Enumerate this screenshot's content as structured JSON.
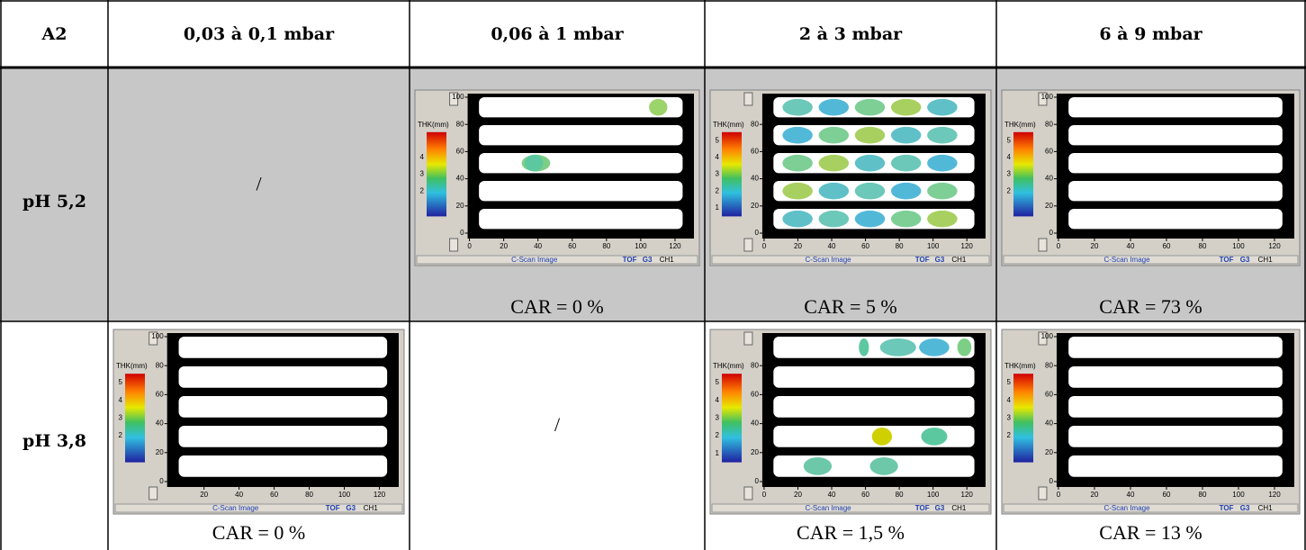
{
  "header": [
    "A2",
    "0,03 à 0,1 mbar",
    "0,06 à 1 mbar",
    "2 à 3 mbar",
    "6 à 9 mbar"
  ],
  "scan_labels": {
    "thk": "THK(mm)",
    "caption": "C-Scan Image",
    "tof": "TOF",
    "g3": "G3",
    "ch": "CH1"
  },
  "rows": [
    {
      "label": "pH 5,2",
      "cells": [
        {
          "text": "/"
        },
        {
          "car": "CAR = 0 %",
          "scan": {
            "yticks": [
              0,
              20,
              40,
              60,
              80,
              100
            ],
            "color_ticks": [
              2,
              3,
              4
            ],
            "xticks": [
              0,
              20,
              40,
              60,
              80,
              100,
              120
            ]
          }
        },
        {
          "car": "CAR = 5 %",
          "scan": {
            "yticks": [
              0,
              20,
              40,
              60,
              80
            ],
            "color_ticks": [
              1,
              2,
              3,
              4,
              5
            ],
            "xticks": [
              0,
              20,
              40,
              60,
              80,
              100,
              120
            ]
          }
        },
        {
          "car": "CAR = 73 %",
          "scan": {
            "yticks": [
              0,
              20,
              40,
              60,
              80,
              100
            ],
            "color_ticks": [
              2,
              3,
              4,
              5
            ],
            "xticks": [
              0,
              20,
              40,
              60,
              80,
              100,
              120
            ]
          }
        }
      ]
    },
    {
      "label": "pH 3,8",
      "cells": [
        {
          "car": "CAR = 0 %",
          "scan": {
            "yticks": [
              0,
              20,
              40,
              60,
              80,
              100
            ],
            "color_ticks": [
              2,
              3,
              4,
              5
            ],
            "xticks": [
              20,
              40,
              60,
              80,
              100,
              120
            ]
          }
        },
        {
          "text": "/"
        },
        {
          "car": "CAR = 1,5 %",
          "scan": {
            "yticks": [
              0,
              20,
              40,
              60,
              80
            ],
            "color_ticks": [
              1,
              2,
              3,
              4,
              5
            ],
            "xticks": [
              0,
              20,
              40,
              60,
              80,
              100,
              120
            ]
          }
        },
        {
          "car": "CAR = 13 %",
          "scan": {
            "yticks": [
              0,
              20,
              40,
              60,
              80,
              100
            ],
            "color_ticks": [
              2,
              3,
              4,
              5
            ],
            "xticks": [
              0,
              20,
              40,
              60,
              80,
              100,
              120
            ]
          }
        }
      ]
    }
  ]
}
